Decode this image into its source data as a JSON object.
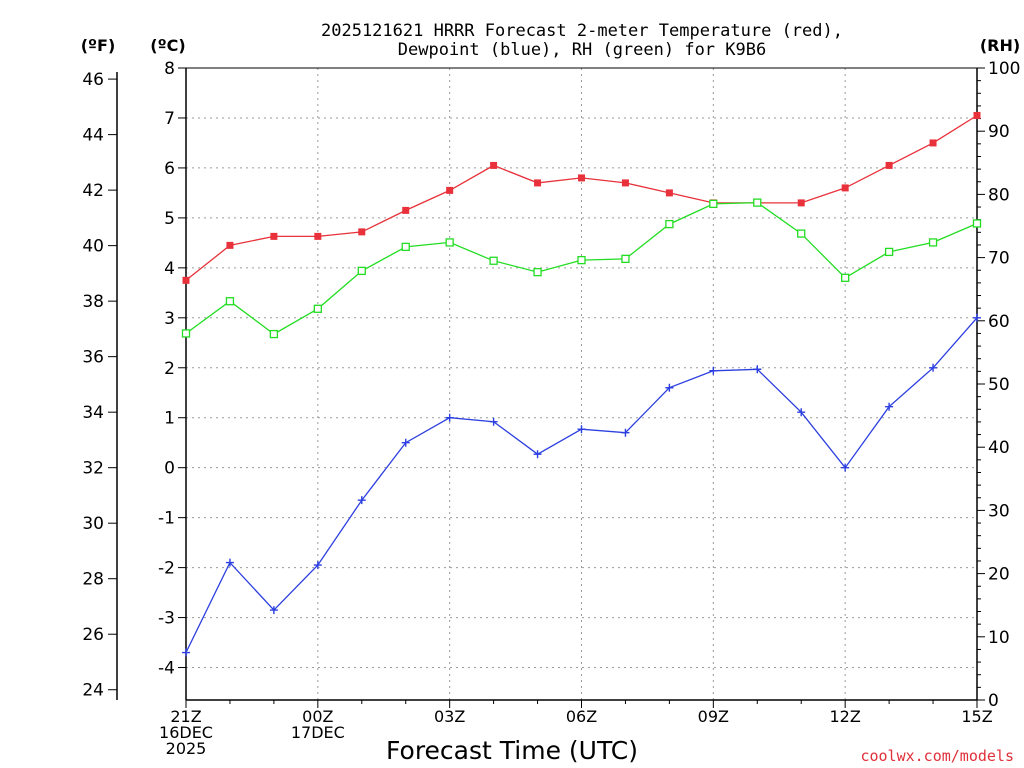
{
  "title": {
    "line1": "2025121621 HRRR Forecast 2-meter Temperature (red),",
    "line2": "Dewpoint (blue), RH (green) for K9B6"
  },
  "axes": {
    "f_unit": "(ºF)",
    "c_unit": "(ºC)",
    "rh_unit": "(RH)",
    "xlabel": "Forecast Time (UTC)"
  },
  "credit": "coolwx.com/models",
  "x_ticks": [
    {
      "idx": 0,
      "lines": [
        "21Z",
        "16DEC",
        "2025"
      ]
    },
    {
      "idx": 3,
      "lines": [
        "00Z",
        "17DEC"
      ]
    },
    {
      "idx": 6,
      "lines": [
        "03Z"
      ]
    },
    {
      "idx": 9,
      "lines": [
        "06Z"
      ]
    },
    {
      "idx": 12,
      "lines": [
        "09Z"
      ]
    },
    {
      "idx": 15,
      "lines": [
        "12Z"
      ]
    },
    {
      "idx": 18,
      "lines": [
        "15Z"
      ]
    }
  ],
  "chart_data": {
    "type": "line",
    "title": "2025121621 HRRR Forecast 2-meter Temperature (red), Dewpoint (blue), RH (green) for K9B6",
    "xlabel": "Forecast Time (UTC)",
    "x": [
      "21Z",
      "22Z",
      "23Z",
      "00Z",
      "01Z",
      "02Z",
      "03Z",
      "04Z",
      "05Z",
      "06Z",
      "07Z",
      "08Z",
      "09Z",
      "10Z",
      "11Z",
      "12Z",
      "13Z",
      "14Z",
      "15Z"
    ],
    "ylim_c": [
      -4.65,
      8
    ],
    "ylim_f": [
      23.63,
      46.4
    ],
    "ylim_rh": [
      0,
      100
    ],
    "left_f_ticks": [
      24,
      26,
      28,
      30,
      32,
      34,
      36,
      38,
      40,
      42,
      44,
      46
    ],
    "left_c_ticks": [
      -4,
      -3,
      -2,
      -1,
      0,
      1,
      2,
      3,
      4,
      5,
      6,
      7,
      8
    ],
    "right_rh_ticks": [
      0,
      10,
      20,
      30,
      40,
      50,
      60,
      70,
      80,
      90,
      100
    ],
    "series": [
      {
        "name": "Temperature (red)",
        "axis": "C",
        "color": "#e8313a",
        "marker": "filled-square",
        "values": [
          3.75,
          4.45,
          4.63,
          4.63,
          4.72,
          5.15,
          5.55,
          6.05,
          5.7,
          5.8,
          5.7,
          5.5,
          5.3,
          5.3,
          5.3,
          5.6,
          6.05,
          6.5,
          7.05
        ]
      },
      {
        "name": "Dewpoint (blue)",
        "axis": "C",
        "color": "#2c3fe0",
        "marker": "plus",
        "values": [
          -3.7,
          -1.9,
          -2.85,
          -1.95,
          -0.65,
          0.5,
          1.0,
          0.92,
          0.27,
          0.77,
          0.7,
          1.6,
          1.94,
          1.97,
          1.11,
          0.0,
          1.22,
          2.0,
          3.0
        ]
      },
      {
        "name": "RH (green)",
        "axis": "RH",
        "color": "#22dd22",
        "marker": "open-square",
        "values": [
          58,
          63.1,
          57.9,
          61.9,
          67.9,
          71.7,
          72.4,
          69.5,
          67.7,
          69.6,
          69.8,
          75.3,
          78.5,
          78.7,
          73.8,
          66.8,
          70.9,
          72.4,
          75.4
        ]
      }
    ]
  }
}
